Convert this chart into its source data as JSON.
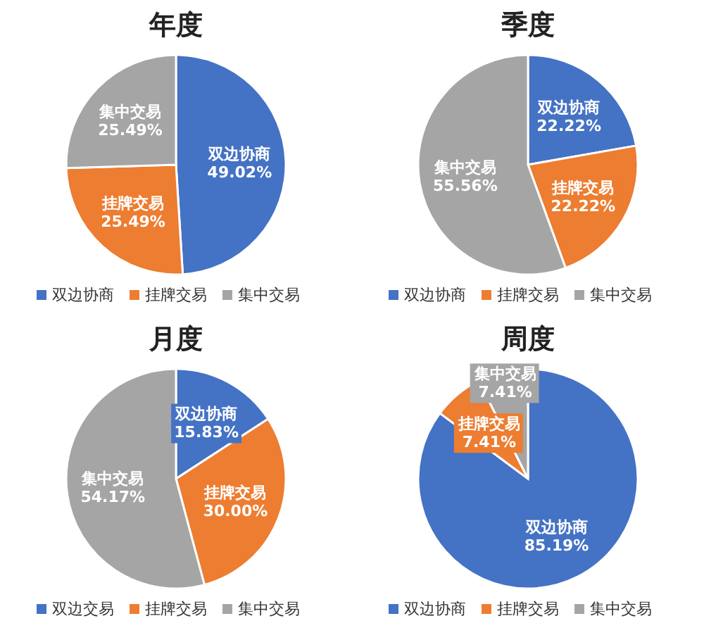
{
  "chart_data": [
    {
      "type": "pie",
      "title": "年度",
      "categories": [
        "双边协商",
        "挂牌交易",
        "集中交易"
      ],
      "values": [
        49.02,
        25.49,
        25.49
      ],
      "colors": [
        "#4472c4",
        "#ed7d31",
        "#a5a5a5"
      ],
      "value_labels": [
        "双边协商\n49.02%",
        "挂牌交易\n25.49%",
        "集中交易\n25.49%"
      ],
      "legend": "bottom"
    },
    {
      "type": "pie",
      "title": "季度",
      "categories": [
        "双边协商",
        "挂牌交易",
        "集中交易"
      ],
      "values": [
        22.22,
        22.22,
        55.56
      ],
      "colors": [
        "#4472c4",
        "#ed7d31",
        "#a5a5a5"
      ],
      "value_labels": [
        "双边协商\n22.22%",
        "挂牌交易\n22.22%",
        "集中交易\n55.56%"
      ],
      "legend": "bottom"
    },
    {
      "type": "pie",
      "title": "月度",
      "categories": [
        "双边交易",
        "挂牌交易",
        "集中交易"
      ],
      "values": [
        15.83,
        30.0,
        54.17
      ],
      "colors": [
        "#4472c4",
        "#ed7d31",
        "#a5a5a5"
      ],
      "value_labels": [
        "双边协商\n15.83%",
        "挂牌交易\n30.00%",
        "集中交易\n54.17%"
      ],
      "legend": "bottom"
    },
    {
      "type": "pie",
      "title": "周度",
      "categories": [
        "双边协商",
        "挂牌交易",
        "集中交易"
      ],
      "values": [
        85.19,
        7.41,
        7.41
      ],
      "colors": [
        "#4472c4",
        "#ed7d31",
        "#a5a5a5"
      ],
      "value_labels": [
        "双边协商\n85.19%",
        "挂牌交易\n7.41%",
        "集中交易\n7.41%"
      ],
      "legend": "bottom"
    }
  ]
}
